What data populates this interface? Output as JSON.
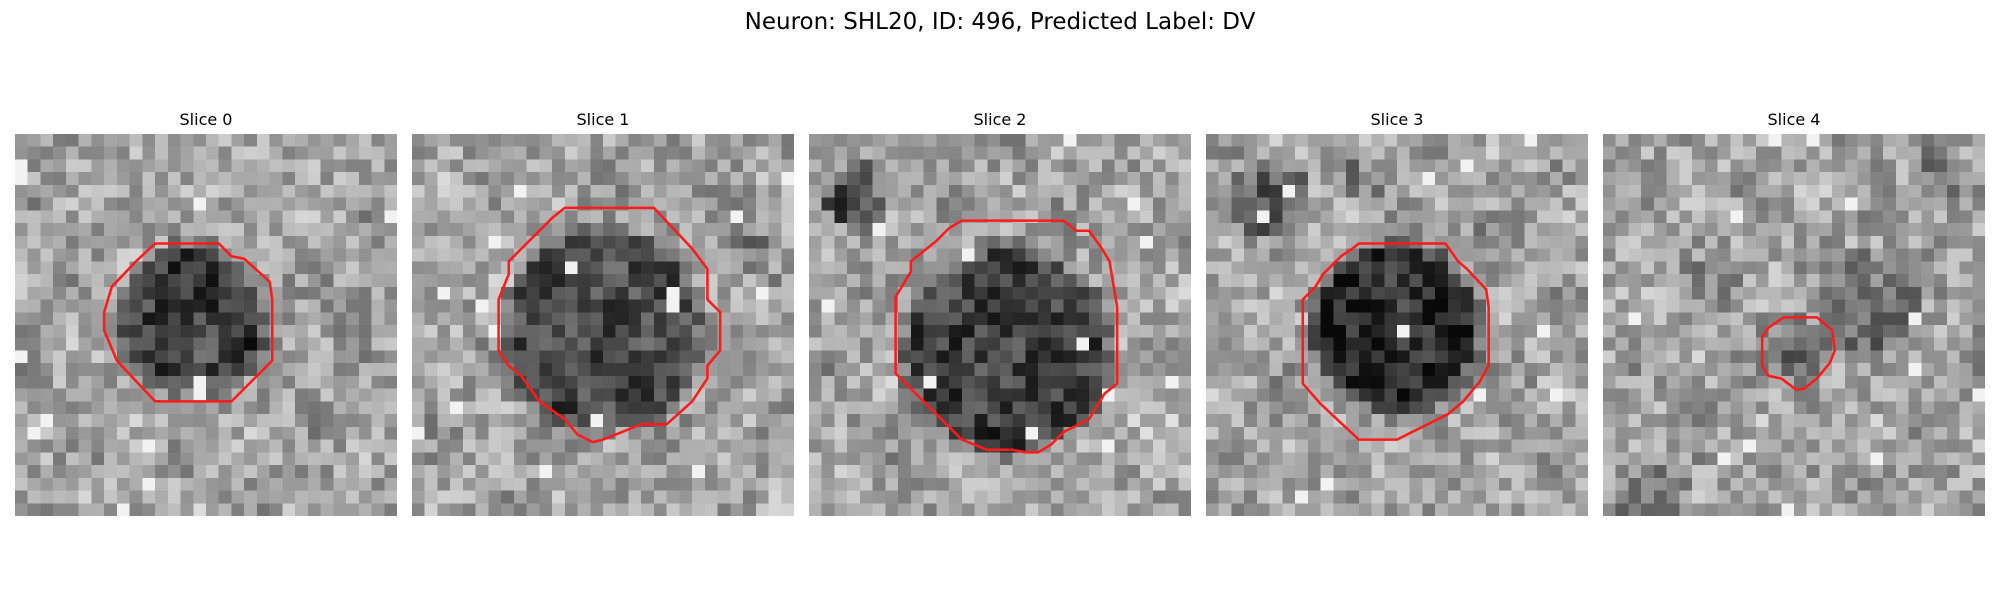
{
  "figure": {
    "title": "Neuron: SHL20, ID: 496, Predicted Label: DV",
    "contour_color": "#ff1a1a",
    "colormap": "gray",
    "panels": [
      {
        "title": "Slice 0",
        "cell_darkness": 0.55
      },
      {
        "title": "Slice 1",
        "cell_darkness": 0.5
      },
      {
        "title": "Slice 2",
        "cell_darkness": 0.55
      },
      {
        "title": "Slice 3",
        "cell_darkness": 0.65
      },
      {
        "title": "Slice 4",
        "cell_darkness": 0.35
      }
    ]
  }
}
